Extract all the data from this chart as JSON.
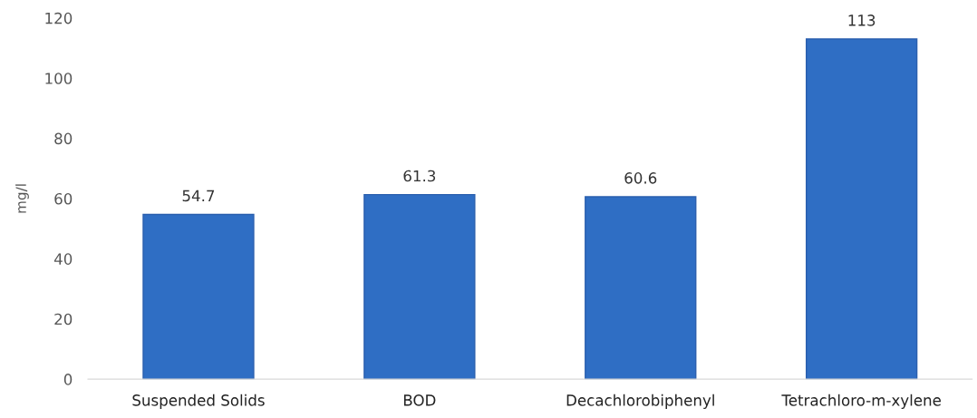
{
  "chart_data": {
    "type": "bar",
    "ylabel": "mg/l",
    "categories": [
      "Suspended Solids",
      "BOD",
      "Decachlorobiphenyl",
      "Tetrachloro-m-xylene"
    ],
    "values": [
      54.7,
      61.3,
      60.6,
      113
    ],
    "value_labels": [
      "54.7",
      "61.3",
      "60.6",
      "113"
    ],
    "color": "#2f6ec4",
    "ylim": [
      0,
      120
    ],
    "yticks": [
      0,
      20,
      40,
      60,
      80,
      100,
      120
    ],
    "grid": false
  }
}
